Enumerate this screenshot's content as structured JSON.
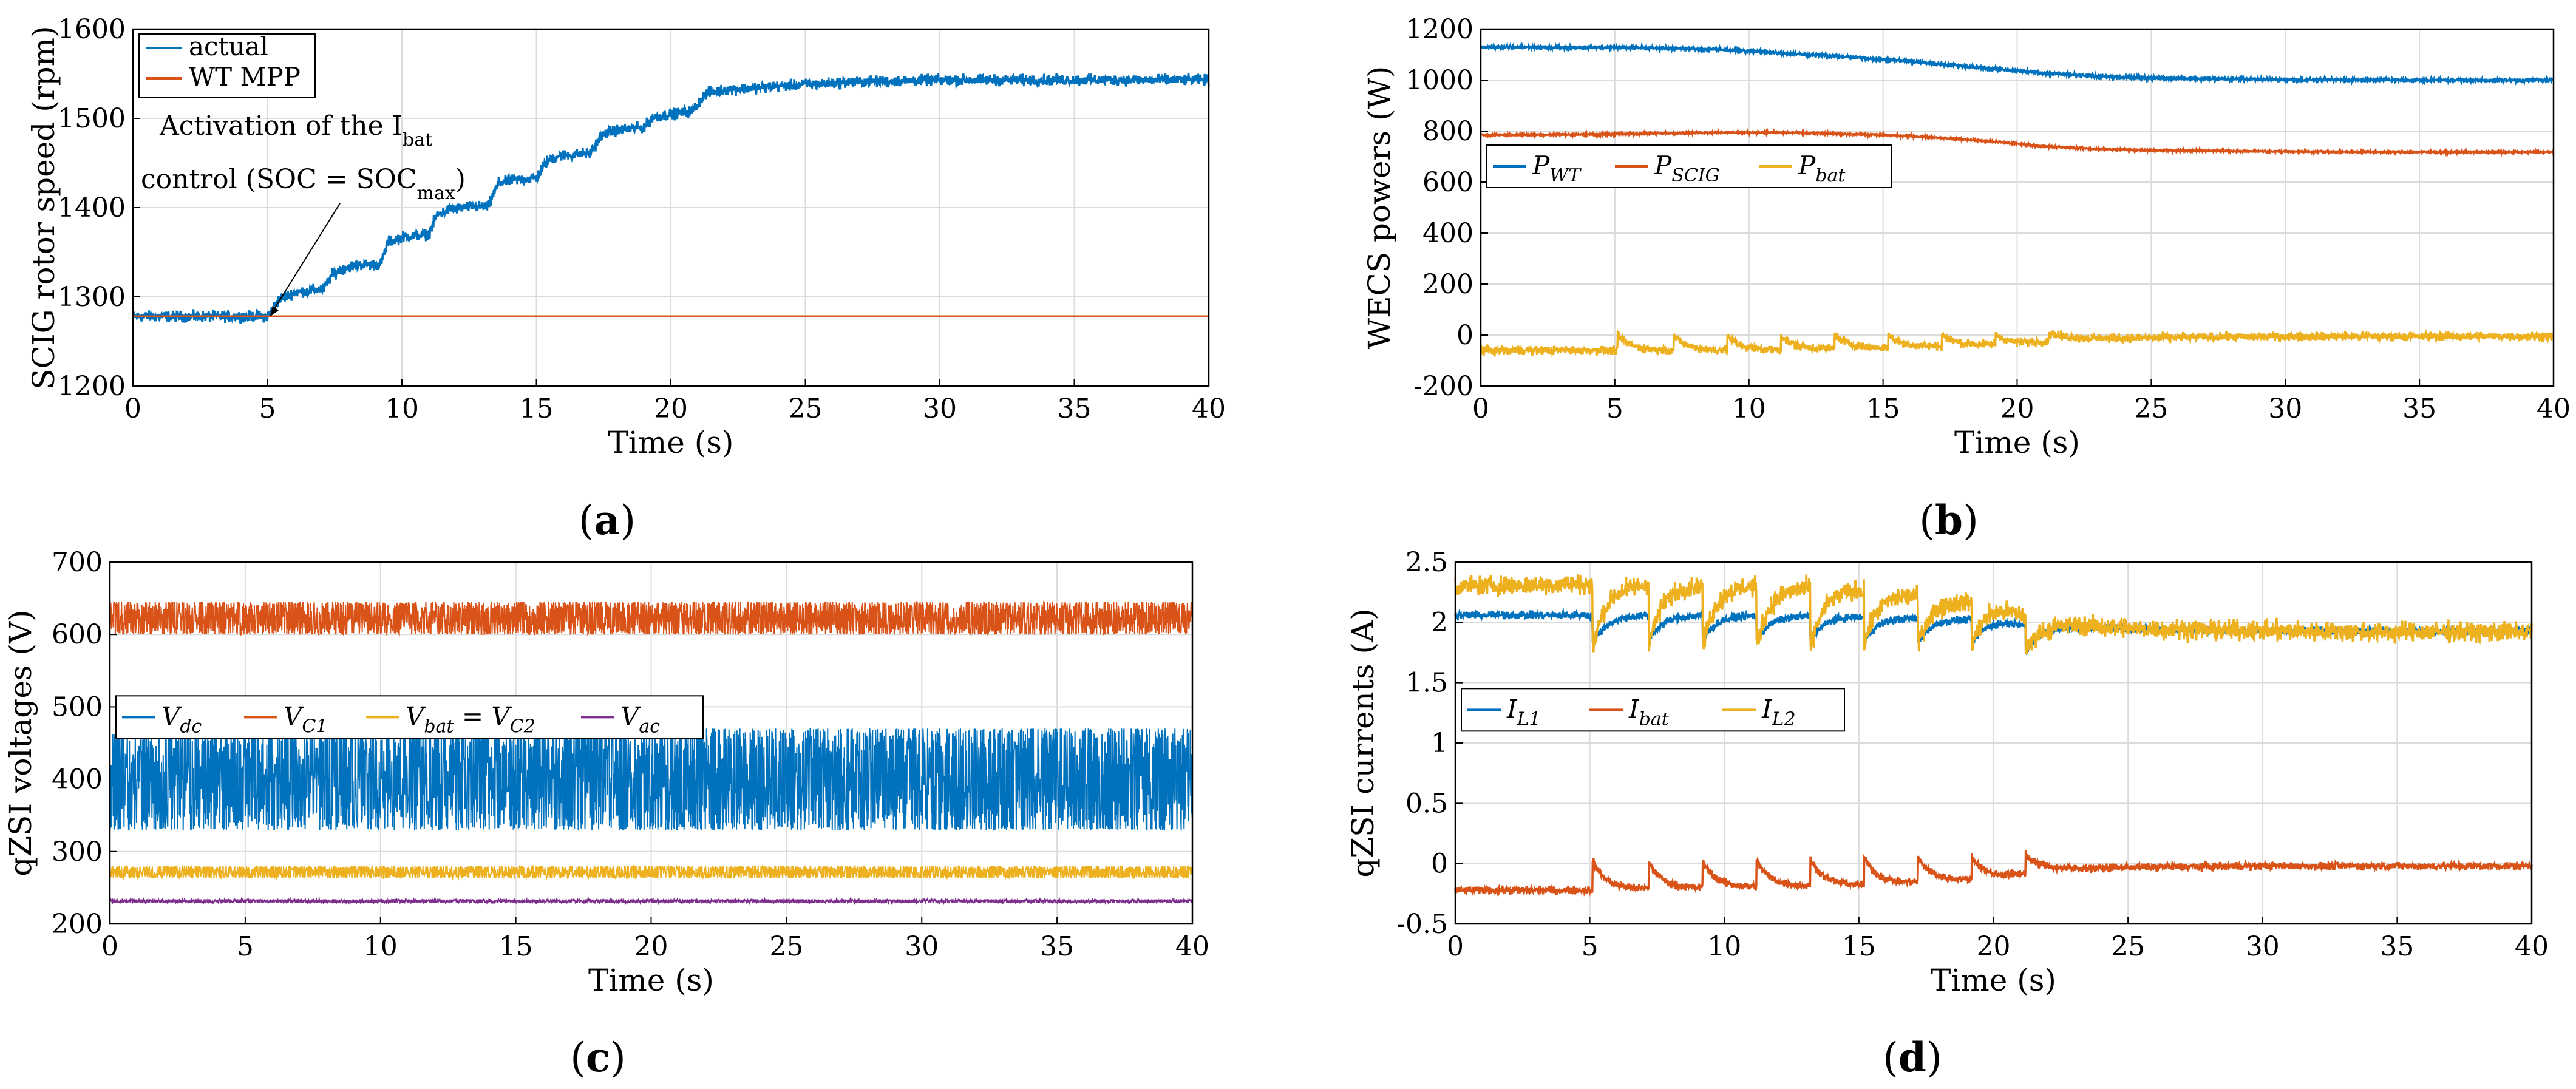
{
  "colors": {
    "blue": "#0072BD",
    "orange": "#D95319",
    "yellow": "#EDB120",
    "purple": "#7E2F8E"
  },
  "chart_data": [
    {
      "type": "line",
      "caption": "a",
      "xlabel": "Time (s)",
      "ylabel": "SCIG rotor speed (rpm)",
      "xlim": [
        0,
        40
      ],
      "ylim": [
        1200,
        1600
      ],
      "xticks": [
        "0",
        "5",
        "10",
        "15",
        "20",
        "25",
        "30",
        "35",
        "40"
      ],
      "yticks": [
        "1200",
        "1300",
        "1400",
        "1500",
        "1600"
      ],
      "grid": true,
      "legend_position": "top-left",
      "legend": [
        {
          "name": "actual",
          "color": "blue"
        },
        {
          "name": "WT MPP",
          "color": "orange"
        }
      ],
      "annotation": {
        "line1_prefix": "Activation of the I",
        "line1_sub": "bat",
        "line2_prefix": "control (SOC = SOC",
        "line2_sub": "max",
        "line2_suffix": ")",
        "arrow_target": [
          5.1,
          1278
        ]
      },
      "series": [
        {
          "name": "actual",
          "color": "blue",
          "noise": 3,
          "x": [
            0,
            5.0,
            5.4,
            6.0,
            6.6,
            7.1,
            7.4,
            8.0,
            8.5,
            9.2,
            9.5,
            10.0,
            11.0,
            11.3,
            11.8,
            12.5,
            13.2,
            13.6,
            14.2,
            15.0,
            15.4,
            15.8,
            17.0,
            17.4,
            17.8,
            19.0,
            19.3,
            19.8,
            20.8,
            21.3,
            22.0,
            23.5,
            25.0,
            27.0,
            30.0,
            35.0,
            40.0
          ],
          "y": [
            1278,
            1278,
            1296,
            1305,
            1307,
            1309,
            1325,
            1334,
            1336,
            1336,
            1362,
            1367,
            1370,
            1392,
            1398,
            1401,
            1401,
            1428,
            1431,
            1433,
            1452,
            1458,
            1461,
            1480,
            1486,
            1490,
            1500,
            1504,
            1508,
            1528,
            1532,
            1535,
            1538,
            1541,
            1543,
            1543,
            1543
          ]
        },
        {
          "name": "WT MPP",
          "color": "orange",
          "noise": 0,
          "x": [
            0,
            40
          ],
          "y": [
            1278,
            1278
          ]
        }
      ]
    },
    {
      "type": "line",
      "caption": "b",
      "xlabel": "Time (s)",
      "ylabel": "WECS powers (W)",
      "xlim": [
        0,
        40
      ],
      "ylim": [
        -200,
        1200
      ],
      "xticks": [
        "0",
        "5",
        "10",
        "15",
        "20",
        "25",
        "30",
        "35",
        "40"
      ],
      "yticks": [
        "-200",
        "0",
        "200",
        "400",
        "600",
        "800",
        "1000",
        "1200"
      ],
      "grid": true,
      "legend_position": "middle-left",
      "legend": [
        {
          "name": "P",
          "sub": "WT",
          "color": "blue"
        },
        {
          "name": "P",
          "sub": "SCIG",
          "color": "orange"
        },
        {
          "name": "P",
          "sub": "bat",
          "color": "yellow"
        }
      ],
      "series": [
        {
          "name": "P_WT",
          "color": "blue",
          "noise": 3,
          "x": [
            0,
            5,
            7,
            9,
            11,
            13,
            15,
            17,
            19,
            21,
            23,
            25,
            30,
            35,
            40
          ],
          "y": [
            1130,
            1128,
            1125,
            1120,
            1108,
            1095,
            1082,
            1065,
            1045,
            1028,
            1015,
            1008,
            1002,
            1000,
            1000
          ]
        },
        {
          "name": "P_SCIG",
          "color": "orange",
          "noise": 2,
          "x": [
            0,
            5,
            7,
            9,
            11,
            13,
            15,
            17,
            19,
            21,
            23,
            25,
            30,
            35,
            40
          ],
          "y": [
            785,
            788,
            792,
            795,
            795,
            790,
            785,
            775,
            760,
            740,
            730,
            725,
            720,
            718,
            718
          ]
        },
        {
          "name": "P_bat",
          "color": "yellow",
          "noise": 8,
          "spikes": {
            "times": [
              5.1,
              7.2,
              9.2,
              11.2,
              13.2,
              15.2,
              17.2,
              19.2,
              21.2
            ],
            "amps": [
              60,
              55,
              55,
              55,
              55,
              50,
              45,
              40,
              35
            ],
            "decay": 0.5
          },
          "x": [
            0,
            5,
            10,
            15,
            20,
            22,
            25,
            30,
            35,
            40
          ],
          "y": [
            -60,
            -60,
            -60,
            -50,
            -35,
            -15,
            -10,
            -5,
            -5,
            -5
          ]
        }
      ]
    },
    {
      "type": "line",
      "caption": "c",
      "xlabel": "Time (s)",
      "ylabel": "qZSI voltages (V)",
      "xlim": [
        0,
        40
      ],
      "ylim": [
        200,
        700
      ],
      "xticks": [
        "0",
        "5",
        "10",
        "15",
        "20",
        "25",
        "30",
        "35",
        "40"
      ],
      "yticks": [
        "200",
        "300",
        "400",
        "500",
        "600",
        "700"
      ],
      "grid": true,
      "legend_position": "middle-left",
      "legend": [
        {
          "name": "V",
          "sub": "dc",
          "color": "blue"
        },
        {
          "name": "V",
          "sub": "C1",
          "color": "orange"
        },
        {
          "name": "V",
          "sub": "bat",
          "suffix": " = ",
          "name2": "V",
          "sub2": "C2",
          "color": "yellow"
        },
        {
          "name": "V",
          "sub": "ac",
          "color": "purple"
        }
      ],
      "series": [
        {
          "name": "V_dc",
          "color": "blue",
          "band": [
            330,
            470
          ]
        },
        {
          "name": "V_C1",
          "color": "orange",
          "band": [
            600,
            645
          ]
        },
        {
          "name": "V_bat",
          "color": "yellow",
          "band": [
            263,
            280
          ]
        },
        {
          "name": "V_ac",
          "color": "purple",
          "band": [
            229,
            234
          ]
        }
      ]
    },
    {
      "type": "line",
      "caption": "d",
      "xlabel": "Time (s)",
      "ylabel": "qZSI currents (A)",
      "xlim": [
        0,
        40
      ],
      "ylim": [
        -0.5,
        2.5
      ],
      "xticks": [
        "0",
        "5",
        "10",
        "15",
        "20",
        "25",
        "30",
        "35",
        "40"
      ],
      "yticks": [
        "-0.5",
        "0",
        "0.5",
        "1",
        "1.5",
        "2",
        "2.5"
      ],
      "grid": true,
      "legend_position": "middle-left",
      "legend": [
        {
          "name": "I",
          "sub": "L1",
          "color": "blue"
        },
        {
          "name": "I",
          "sub": "bat",
          "color": "orange"
        },
        {
          "name": "I",
          "sub": "L2",
          "color": "yellow"
        }
      ],
      "series": [
        {
          "name": "I_L1",
          "color": "blue",
          "noise": 0.015,
          "dips": {
            "times": [
              5.1,
              7.2,
              9.2,
              11.2,
              13.2,
              15.2,
              17.2,
              19.2,
              21.2
            ],
            "amps": [
              0.25,
              0.2,
              0.2,
              0.2,
              0.2,
              0.2,
              0.2,
              0.2,
              0.25
            ],
            "decay": 0.5
          },
          "x": [
            0,
            5,
            10,
            15,
            20,
            22,
            25,
            30,
            35,
            40
          ],
          "y": [
            2.06,
            2.06,
            2.06,
            2.05,
            2.02,
            1.97,
            1.95,
            1.93,
            1.93,
            1.93
          ]
        },
        {
          "name": "I_bat",
          "color": "orange",
          "noise": 0.015,
          "spikes": {
            "times": [
              5.1,
              7.2,
              9.2,
              11.2,
              13.2,
              15.2,
              17.2,
              19.2,
              21.2
            ],
            "amps": [
              0.25,
              0.22,
              0.22,
              0.22,
              0.22,
              0.22,
              0.2,
              0.18,
              0.15
            ],
            "decay": 0.5
          },
          "x": [
            0,
            5,
            10,
            15,
            20,
            22,
            25,
            30,
            35,
            40
          ],
          "y": [
            -0.22,
            -0.22,
            -0.2,
            -0.18,
            -0.12,
            -0.05,
            -0.03,
            -0.02,
            -0.02,
            -0.02
          ]
        },
        {
          "name": "I_L2",
          "color": "yellow",
          "noise": 0.04,
          "dips": {
            "times": [
              5.1,
              7.2,
              9.2,
              11.2,
              13.2,
              15.2,
              17.2,
              19.2,
              21.2
            ],
            "amps": [
              0.55,
              0.5,
              0.5,
              0.5,
              0.5,
              0.45,
              0.4,
              0.35,
              0.3
            ],
            "decay": 0.5
          },
          "x": [
            0,
            5,
            10,
            15,
            20,
            22,
            25,
            30,
            35,
            40
          ],
          "y": [
            2.3,
            2.32,
            2.32,
            2.28,
            2.15,
            2.0,
            1.95,
            1.93,
            1.92,
            1.92
          ]
        }
      ]
    }
  ]
}
